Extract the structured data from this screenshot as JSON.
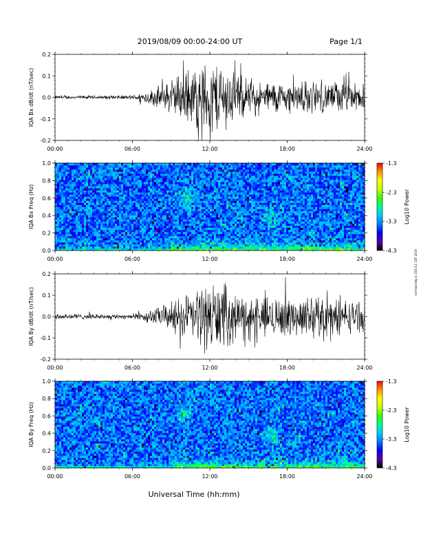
{
  "header": {
    "title": "2019/08/09  00:00-24:00 UT",
    "page": "Page 1/1"
  },
  "footer": {
    "xlabel": "Universal Time (hh:mm)",
    "side_note": "nmf itod 6ep 4 15(1)11 CDT 2019"
  },
  "colors": {
    "background": "#ffffff",
    "trace": "#000000",
    "colormap": [
      "#000000",
      "#5a00a0",
      "#0000ff",
      "#0078ff",
      "#00c8ff",
      "#00ff96",
      "#32ff00",
      "#c8ff00",
      "#ffff00",
      "#ff9600",
      "#ff0000"
    ]
  },
  "chart_data": [
    {
      "type": "line",
      "panel": "bx-waveform",
      "ylabel": "IQA Bx dB/dt (nT/sec)",
      "ylim": [
        -0.2,
        0.2
      ],
      "yticks": [
        "0.2",
        "0.1",
        "0.0",
        "-0.1",
        "-0.2"
      ],
      "xlim": [
        "00:00",
        "24:00"
      ],
      "xticks": [
        "00:00",
        "06:00",
        "12:00",
        "18:00",
        "24:00"
      ],
      "x_hours": [
        0,
        2,
        4,
        6,
        7,
        8,
        9,
        10,
        11,
        12,
        13,
        14,
        15,
        16,
        17,
        18,
        19,
        20,
        21,
        22,
        23,
        24
      ],
      "envelope": [
        0.01,
        0.01,
        0.01,
        0.012,
        0.03,
        0.06,
        0.09,
        0.14,
        0.18,
        0.2,
        0.2,
        0.13,
        0.1,
        0.08,
        0.09,
        0.08,
        0.09,
        0.09,
        0.08,
        0.09,
        0.08,
        0.07
      ]
    },
    {
      "type": "heatmap",
      "panel": "bx-spectrogram",
      "ylabel": "IQA Bx Freq (Hz)",
      "ylim": [
        0.0,
        1.0
      ],
      "yticks": [
        "1.0",
        "0.8",
        "0.6",
        "0.4",
        "0.2",
        "0.0"
      ],
      "xlim": [
        "00:00",
        "24:00"
      ],
      "xticks": [
        "00:00",
        "06:00",
        "12:00",
        "18:00",
        "24:00"
      ],
      "colorbar": {
        "label": "Log10 Power",
        "range": [
          -4.3,
          -1.3
        ],
        "ticks": [
          "-1.3",
          "-2.3",
          "-3.3",
          "-4.3"
        ]
      },
      "low_freq_enhancement_hours": [
        9,
        24
      ],
      "features": [
        {
          "hour": 10.3,
          "freq": 0.6
        },
        {
          "hour": 16.7,
          "freq": 0.38
        }
      ]
    },
    {
      "type": "line",
      "panel": "by-waveform",
      "ylabel": "IQA By dB/dt (nT/sec)",
      "ylim": [
        -0.2,
        0.2
      ],
      "yticks": [
        "0.2",
        "0.1",
        "0.0",
        "-0.1",
        "-0.2"
      ],
      "xlim": [
        "00:00",
        "24:00"
      ],
      "xticks": [
        "00:00",
        "06:00",
        "12:00",
        "18:00",
        "24:00"
      ],
      "x_hours": [
        0,
        2,
        4,
        6,
        7,
        8,
        9,
        10,
        11,
        12,
        13,
        14,
        15,
        16,
        17,
        18,
        19,
        20,
        21,
        22,
        23,
        24
      ],
      "envelope": [
        0.02,
        0.015,
        0.012,
        0.015,
        0.03,
        0.05,
        0.08,
        0.12,
        0.16,
        0.2,
        0.18,
        0.13,
        0.11,
        0.1,
        0.12,
        0.11,
        0.1,
        0.12,
        0.12,
        0.1,
        0.09,
        0.08
      ]
    },
    {
      "type": "heatmap",
      "panel": "by-spectrogram",
      "ylabel": "IQA By Freq (Hz)",
      "ylim": [
        0.0,
        1.0
      ],
      "yticks": [
        "1.0",
        "0.8",
        "0.6",
        "0.4",
        "0.2",
        "0.0"
      ],
      "xlim": [
        "00:00",
        "24:00"
      ],
      "xticks": [
        "00:00",
        "06:00",
        "12:00",
        "18:00",
        "24:00"
      ],
      "colorbar": {
        "label": "Log10 Power",
        "range": [
          -4.3,
          -1.3
        ],
        "ticks": [
          "-1.3",
          "-2.3",
          "-3.3",
          "-4.3"
        ]
      },
      "low_freq_enhancement_hours": [
        9,
        24
      ],
      "features": [
        {
          "hour": 10.0,
          "freq": 0.62
        },
        {
          "hour": 16.8,
          "freq": 0.36
        }
      ]
    }
  ]
}
